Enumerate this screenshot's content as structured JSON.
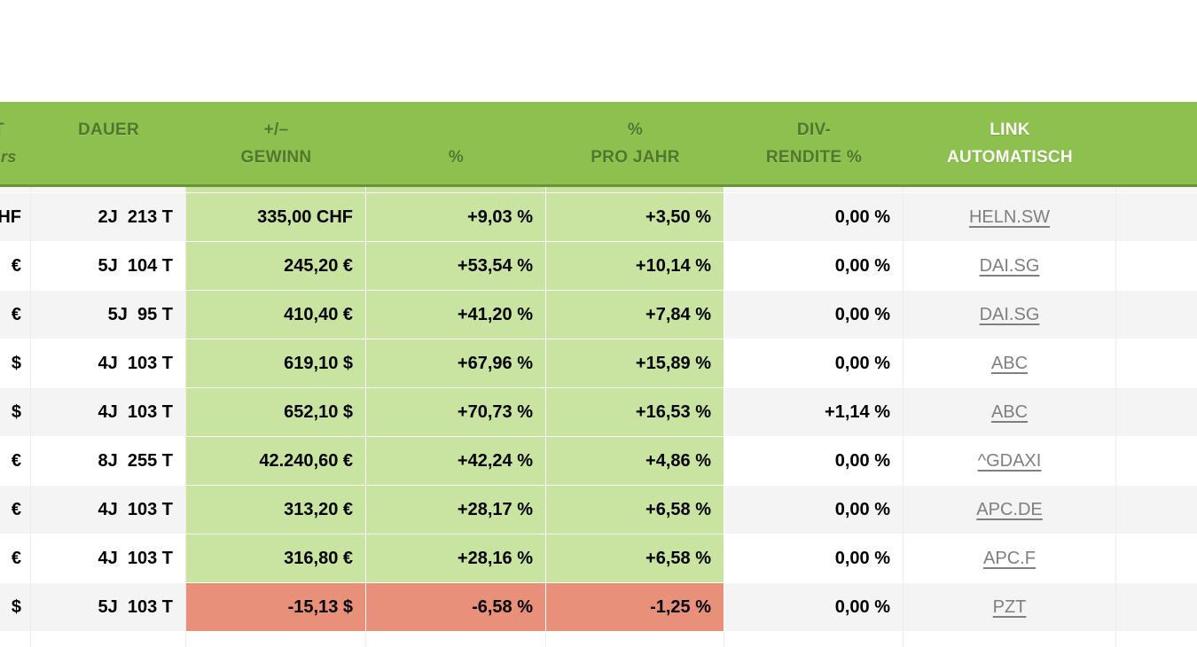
{
  "table": {
    "header": {
      "wert": {
        "line1": "T",
        "line2": "rs"
      },
      "dauer": {
        "line1": "DAUER",
        "line2": ""
      },
      "gewinn": {
        "line1": "+/–",
        "line2": "GEWINN"
      },
      "pct": {
        "line1": "",
        "line2": "%"
      },
      "pct_jahr": {
        "line1": "%",
        "line2": "PRO JAHR"
      },
      "div": {
        "line1": "DIV-",
        "line2": "RENDITE %"
      },
      "link": {
        "line1": "LINK",
        "line2": "AUTOMATISCH"
      },
      "extra": {
        "line1": "",
        "line2": ""
      }
    },
    "rows": [
      {
        "wert": "HF",
        "dauer": "2J  213 T",
        "gewinn": "335,00 CHF",
        "pct": "+9,03 %",
        "pct_jahr": "+3,50 %",
        "div": "0,00 %",
        "link": "HELN.SW",
        "negative": false
      },
      {
        "wert": "€",
        "dauer": "5J  104 T",
        "gewinn": "245,20 €",
        "pct": "+53,54 %",
        "pct_jahr": "+10,14 %",
        "div": "0,00 %",
        "link": "DAI.SG",
        "negative": false
      },
      {
        "wert": "€",
        "dauer": "5J  95 T",
        "gewinn": "410,40 €",
        "pct": "+41,20 %",
        "pct_jahr": "+7,84 %",
        "div": "0,00 %",
        "link": "DAI.SG",
        "negative": false
      },
      {
        "wert": "$",
        "dauer": "4J  103 T",
        "gewinn": "619,10 $",
        "pct": "+67,96 %",
        "pct_jahr": "+15,89 %",
        "div": "0,00 %",
        "link": "ABC",
        "negative": false
      },
      {
        "wert": "$",
        "dauer": "4J  103 T",
        "gewinn": "652,10 $",
        "pct": "+70,73 %",
        "pct_jahr": "+16,53 %",
        "div": "+1,14 %",
        "link": "ABC",
        "negative": false
      },
      {
        "wert": "€",
        "dauer": "8J  255 T",
        "gewinn": "42.240,60 €",
        "pct": "+42,24 %",
        "pct_jahr": "+4,86 %",
        "div": "0,00 %",
        "link": "^GDAXI",
        "negative": false
      },
      {
        "wert": "€",
        "dauer": "4J  103 T",
        "gewinn": "313,20 €",
        "pct": "+28,17 %",
        "pct_jahr": "+6,58 %",
        "div": "0,00 %",
        "link": "APC.DE",
        "negative": false
      },
      {
        "wert": "€",
        "dauer": "4J  103 T",
        "gewinn": "316,80 €",
        "pct": "+28,16 %",
        "pct_jahr": "+6,58 %",
        "div": "0,00 %",
        "link": "APC.F",
        "negative": false
      },
      {
        "wert": "$",
        "dauer": "5J  103 T",
        "gewinn": "-15,13 $",
        "pct": "-6,58 %",
        "pct_jahr": "-1,25 %",
        "div": "0,00 %",
        "link": "PZT",
        "negative": true
      }
    ]
  },
  "colors": {
    "header_green": "#8dc04e",
    "header_edge": "#6b9139",
    "header_text": "#50772a",
    "positive_cell_green": "#c9e4a1",
    "negative_cell_red": "#e9907a",
    "row_stripe_gray": "#f4f4f4",
    "link_gray": "#7f7f7f"
  }
}
